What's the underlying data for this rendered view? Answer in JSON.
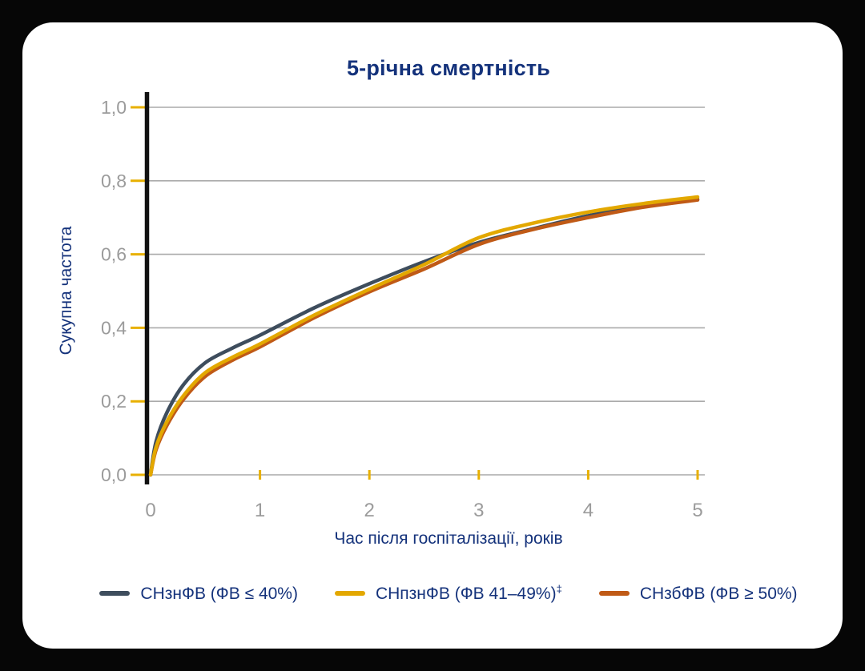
{
  "page": {
    "background_color": "#060606",
    "card_color": "#ffffff",
    "accent_navy": "#14327b",
    "tick_text_color": "#9b9b9b",
    "gridline_color": "#aaaaaa",
    "axis_color": "#111111",
    "tick_mark_color": "#e8b000"
  },
  "chart_data": {
    "type": "line",
    "title": "5-річна смертність",
    "xlabel": "Час після госпіталізації, років",
    "ylabel": "Сукупна частота",
    "xlim": [
      0,
      5
    ],
    "ylim": [
      0,
      1
    ],
    "grid": "horizontal",
    "legend_position": "bottom",
    "x_ticks": [
      {
        "v": 0,
        "label": "0"
      },
      {
        "v": 1,
        "label": "1"
      },
      {
        "v": 2,
        "label": "2"
      },
      {
        "v": 3,
        "label": "3"
      },
      {
        "v": 4,
        "label": "4"
      },
      {
        "v": 5,
        "label": "5"
      }
    ],
    "y_ticks": [
      {
        "v": 0.0,
        "label": "0,0"
      },
      {
        "v": 0.2,
        "label": "0,2"
      },
      {
        "v": 0.4,
        "label": "0,4"
      },
      {
        "v": 0.6,
        "label": "0,6"
      },
      {
        "v": 0.8,
        "label": "0,8"
      },
      {
        "v": 1.0,
        "label": "1,0"
      }
    ],
    "series": [
      {
        "name": "СНзнФВ (ФВ ≤ 40%)",
        "sup": "",
        "color": "#3e4d5d",
        "points": [
          [
            0,
            0
          ],
          [
            0.05,
            0.09
          ],
          [
            0.15,
            0.17
          ],
          [
            0.3,
            0.245
          ],
          [
            0.5,
            0.305
          ],
          [
            0.75,
            0.345
          ],
          [
            1,
            0.38
          ],
          [
            1.5,
            0.455
          ],
          [
            2,
            0.52
          ],
          [
            2.5,
            0.58
          ],
          [
            3,
            0.632
          ],
          [
            3.5,
            0.67
          ],
          [
            4,
            0.705
          ],
          [
            4.5,
            0.73
          ],
          [
            5,
            0.75
          ]
        ]
      },
      {
        "name": "СНпзнФВ (ФВ 41–49%)",
        "sup": "‡",
        "color": "#e3a800",
        "points": [
          [
            0,
            0
          ],
          [
            0.05,
            0.075
          ],
          [
            0.15,
            0.145
          ],
          [
            0.3,
            0.215
          ],
          [
            0.5,
            0.278
          ],
          [
            0.75,
            0.32
          ],
          [
            1,
            0.356
          ],
          [
            1.5,
            0.435
          ],
          [
            2,
            0.505
          ],
          [
            2.5,
            0.572
          ],
          [
            3,
            0.645
          ],
          [
            3.5,
            0.685
          ],
          [
            4,
            0.715
          ],
          [
            4.5,
            0.738
          ],
          [
            5,
            0.756
          ]
        ]
      },
      {
        "name": "СНзбФВ (ФВ ≥ 50%)",
        "sup": "",
        "color": "#c05a16",
        "points": [
          [
            0,
            0
          ],
          [
            0.05,
            0.068
          ],
          [
            0.15,
            0.135
          ],
          [
            0.3,
            0.205
          ],
          [
            0.5,
            0.268
          ],
          [
            0.75,
            0.312
          ],
          [
            1,
            0.348
          ],
          [
            1.5,
            0.428
          ],
          [
            2,
            0.498
          ],
          [
            2.5,
            0.56
          ],
          [
            3,
            0.627
          ],
          [
            3.5,
            0.668
          ],
          [
            4,
            0.7
          ],
          [
            4.5,
            0.728
          ],
          [
            5,
            0.748
          ]
        ]
      }
    ]
  }
}
